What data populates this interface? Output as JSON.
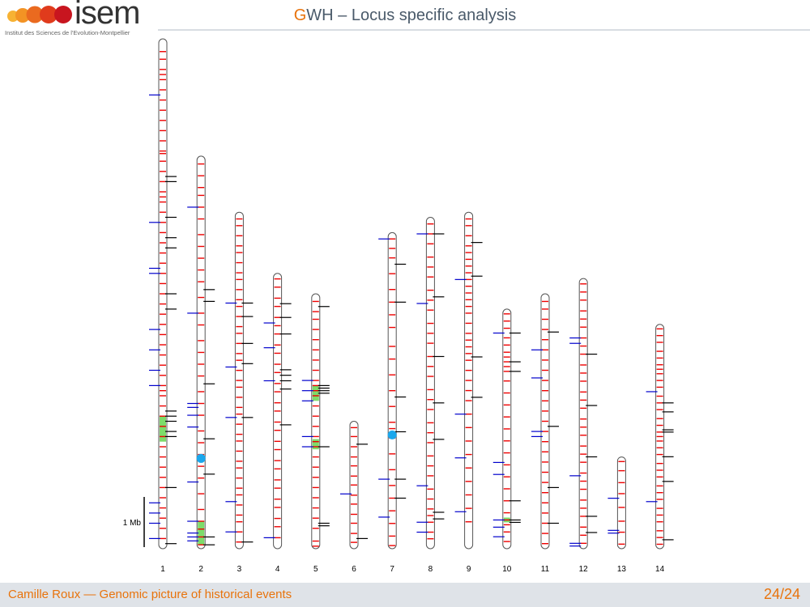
{
  "header": {
    "logo_text": "isem",
    "logo_tagline": "Institut des Sciences de l'Evolution-Montpellier",
    "title_accent": "G",
    "title_rest": "WH – Locus specific analysis"
  },
  "footer": {
    "author": "Camille Roux — Genomic picture of historical events",
    "page": "24/24"
  },
  "colors": {
    "segment_mark": "#ee0000",
    "blue_mark": "#0000cc",
    "black_mark": "#000000",
    "green_region": "#7ddc6a",
    "centromere": "#1aa7ec",
    "outline": "#555555"
  },
  "diagram": {
    "scale_label": "1 Mb",
    "chromosomes": [
      {
        "label": "1",
        "length": 1.0,
        "red": [
          0.025,
          0.04,
          0.06,
          0.07,
          0.08,
          0.1,
          0.12,
          0.14,
          0.16,
          0.18,
          0.2,
          0.22,
          0.225,
          0.24,
          0.26,
          0.28,
          0.3,
          0.31,
          0.32,
          0.34,
          0.36,
          0.38,
          0.4,
          0.42,
          0.44,
          0.46,
          0.48,
          0.5,
          0.52,
          0.54,
          0.56,
          0.58,
          0.6,
          0.62,
          0.64,
          0.66,
          0.68,
          0.69,
          0.7,
          0.72,
          0.74,
          0.76,
          0.78,
          0.8,
          0.82,
          0.84,
          0.86,
          0.88,
          0.9,
          0.92,
          0.94,
          0.96,
          0.98
        ],
        "blue": [
          0.11,
          0.36,
          0.45,
          0.46,
          0.57,
          0.61,
          0.65,
          0.68,
          0.91,
          0.93,
          0.95,
          0.98
        ],
        "black": [
          0.27,
          0.28,
          0.35,
          0.39,
          0.41,
          0.5,
          0.53,
          0.73,
          0.74,
          0.75,
          0.77,
          0.78,
          0.88,
          0.99
        ],
        "green": [
          [
            0.74,
            0.79
          ]
        ],
        "cent": null
      },
      {
        "label": "2",
        "length": 0.77,
        "red": [
          0.02,
          0.05,
          0.08,
          0.1,
          0.13,
          0.16,
          0.2,
          0.23,
          0.26,
          0.29,
          0.32,
          0.36,
          0.4,
          0.43,
          0.47,
          0.5,
          0.53,
          0.56,
          0.6,
          0.63,
          0.66,
          0.7,
          0.73,
          0.76,
          0.79,
          0.82,
          0.86,
          0.9,
          0.93,
          0.95,
          0.97,
          0.99
        ],
        "blue": [
          0.13,
          0.4,
          0.63,
          0.64,
          0.66,
          0.69,
          0.83,
          0.93,
          0.96,
          0.97,
          0.98
        ],
        "black": [
          0.34,
          0.37,
          0.58,
          0.72,
          0.81,
          0.97,
          0.99
        ],
        "green": [
          [
            0.93,
            0.99
          ]
        ],
        "cent": 0.77
      },
      {
        "label": "3",
        "length": 0.66,
        "red": [
          0.02,
          0.04,
          0.07,
          0.1,
          0.12,
          0.15,
          0.18,
          0.2,
          0.23,
          0.26,
          0.28,
          0.31,
          0.34,
          0.36,
          0.39,
          0.42,
          0.44,
          0.47,
          0.5,
          0.52,
          0.55,
          0.58,
          0.6,
          0.63,
          0.66,
          0.68,
          0.71,
          0.74,
          0.76,
          0.79,
          0.82,
          0.84,
          0.87,
          0.9,
          0.92,
          0.95,
          0.98
        ],
        "blue": [
          0.27,
          0.46,
          0.61,
          0.86,
          0.95
        ],
        "black": [
          0.27,
          0.31,
          0.39,
          0.45,
          0.61,
          0.98
        ],
        "green": [],
        "cent": null
      },
      {
        "label": "4",
        "length": 0.54,
        "red": [
          0.02,
          0.05,
          0.09,
          0.12,
          0.16,
          0.19,
          0.22,
          0.26,
          0.29,
          0.33,
          0.36,
          0.4,
          0.43,
          0.47,
          0.5,
          0.54,
          0.57,
          0.61,
          0.64,
          0.68,
          0.71,
          0.75,
          0.78,
          0.82,
          0.85,
          0.89,
          0.92,
          0.96
        ],
        "blue": [
          0.18,
          0.27,
          0.39,
          0.96
        ],
        "black": [
          0.11,
          0.16,
          0.22,
          0.35,
          0.37,
          0.39,
          0.42,
          0.55
        ],
        "green": [],
        "cent": null
      },
      {
        "label": "5",
        "length": 0.5,
        "red": [
          0.03,
          0.07,
          0.1,
          0.14,
          0.18,
          0.22,
          0.26,
          0.3,
          0.34,
          0.36,
          0.38,
          0.4,
          0.44,
          0.48,
          0.52,
          0.56,
          0.58,
          0.6,
          0.64,
          0.68,
          0.72,
          0.76,
          0.8,
          0.84,
          0.88,
          0.92,
          0.97,
          0.99
        ],
        "blue": [
          0.34,
          0.38,
          0.42,
          0.56,
          0.6
        ],
        "black": [
          0.05,
          0.36,
          0.37,
          0.38,
          0.39,
          0.6,
          0.9,
          0.91
        ],
        "green": [
          [
            0.36,
            0.42
          ],
          [
            0.57,
            0.61
          ]
        ],
        "cent": null
      },
      {
        "label": "6",
        "length": 0.25,
        "red": [
          0.05,
          0.12,
          0.2,
          0.28,
          0.35,
          0.43,
          0.5,
          0.58,
          0.65,
          0.73,
          0.8,
          0.88,
          0.95
        ],
        "blue": [
          0.57
        ],
        "black": [
          0.18,
          0.92
        ],
        "green": [],
        "cent": null
      },
      {
        "label": "7",
        "length": 0.62,
        "red": [
          0.02,
          0.05,
          0.08,
          0.13,
          0.18,
          0.22,
          0.26,
          0.3,
          0.36,
          0.4,
          0.45,
          0.5,
          0.55,
          0.6,
          0.62,
          0.65,
          0.7,
          0.75,
          0.8,
          0.84,
          0.88,
          0.92,
          0.96,
          0.99
        ],
        "blue": [
          0.02,
          0.78,
          0.9
        ],
        "black": [
          0.1,
          0.22,
          0.52,
          0.63,
          0.78,
          0.84
        ],
        "green": [],
        "cent": 0.64
      },
      {
        "label": "8",
        "length": 0.65,
        "red": [
          0.02,
          0.05,
          0.08,
          0.12,
          0.15,
          0.18,
          0.22,
          0.25,
          0.28,
          0.32,
          0.35,
          0.38,
          0.42,
          0.45,
          0.48,
          0.52,
          0.55,
          0.58,
          0.62,
          0.65,
          0.68,
          0.72,
          0.75,
          0.78,
          0.82,
          0.85,
          0.88,
          0.9,
          0.92,
          0.95,
          0.97
        ],
        "blue": [
          0.05,
          0.26,
          0.81,
          0.92,
          0.95
        ],
        "black": [
          0.05,
          0.24,
          0.42,
          0.56,
          0.67,
          0.89,
          0.91
        ],
        "green": [],
        "cent": null
      },
      {
        "label": "9",
        "length": 0.66,
        "red": [
          0.02,
          0.04,
          0.07,
          0.1,
          0.12,
          0.14,
          0.16,
          0.18,
          0.2,
          0.22,
          0.24,
          0.26,
          0.28,
          0.3,
          0.33,
          0.36,
          0.38,
          0.4,
          0.42,
          0.44,
          0.47,
          0.5,
          0.53,
          0.56,
          0.6,
          0.64,
          0.68,
          0.72,
          0.76,
          0.8,
          0.84,
          0.88,
          0.92
        ],
        "blue": [
          0.2,
          0.6,
          0.73,
          0.89
        ],
        "black": [
          0.09,
          0.19,
          0.43,
          0.55
        ],
        "green": [],
        "cent": null
      },
      {
        "label": "10",
        "length": 0.47,
        "red": [
          0.02,
          0.05,
          0.08,
          0.12,
          0.15,
          0.18,
          0.2,
          0.22,
          0.24,
          0.26,
          0.3,
          0.35,
          0.4,
          0.45,
          0.5,
          0.55,
          0.6,
          0.65,
          0.7,
          0.75,
          0.8,
          0.85,
          0.88,
          0.9,
          0.93,
          0.97
        ],
        "blue": [
          0.1,
          0.64,
          0.69,
          0.88,
          0.91,
          0.95
        ],
        "black": [
          0.1,
          0.22,
          0.26,
          0.8,
          0.88,
          0.89
        ],
        "green": [
          [
            0.87,
            0.89
          ]
        ],
        "cent": null
      },
      {
        "label": "11",
        "length": 0.5,
        "red": [
          0.03,
          0.06,
          0.1,
          0.14,
          0.18,
          0.22,
          0.26,
          0.3,
          0.34,
          0.38,
          0.42,
          0.46,
          0.5,
          0.54,
          0.58,
          0.62,
          0.66,
          0.7,
          0.74,
          0.78,
          0.82,
          0.86,
          0.9,
          0.94,
          0.98
        ],
        "blue": [
          0.22,
          0.33,
          0.54,
          0.56
        ],
        "black": [
          0.15,
          0.52,
          0.76,
          0.9
        ],
        "green": [],
        "cent": null
      },
      {
        "label": "12",
        "length": 0.53,
        "red": [
          0.02,
          0.05,
          0.08,
          0.12,
          0.15,
          0.18,
          0.22,
          0.25,
          0.28,
          0.32,
          0.35,
          0.38,
          0.42,
          0.45,
          0.48,
          0.52,
          0.55,
          0.58,
          0.62,
          0.65,
          0.68,
          0.72,
          0.75,
          0.78,
          0.82,
          0.85,
          0.88,
          0.92,
          0.95,
          0.98
        ],
        "blue": [
          0.22,
          0.24,
          0.73,
          0.98,
          0.99
        ],
        "black": [
          0.28,
          0.47,
          0.66,
          0.88,
          0.94
        ],
        "green": [],
        "cent": null
      },
      {
        "label": "13",
        "length": 0.18,
        "red": [
          0.05,
          0.15,
          0.28,
          0.4,
          0.55,
          0.7,
          0.82,
          0.95
        ],
        "blue": [
          0.45,
          0.8,
          0.83
        ],
        "black": [],
        "green": [],
        "cent": null
      },
      {
        "label": "14",
        "length": 0.44,
        "red": [
          0.02,
          0.05,
          0.08,
          0.12,
          0.15,
          0.18,
          0.2,
          0.22,
          0.25,
          0.28,
          0.32,
          0.35,
          0.38,
          0.42,
          0.45,
          0.48,
          0.5,
          0.52,
          0.55,
          0.58,
          0.62,
          0.65,
          0.68,
          0.72,
          0.75,
          0.78,
          0.82,
          0.85,
          0.88,
          0.92,
          0.95,
          0.98
        ],
        "blue": [
          0.3,
          0.79
        ],
        "black": [
          0.35,
          0.39,
          0.47,
          0.48,
          0.59,
          0.7,
          0.96
        ],
        "green": [],
        "cent": null
      }
    ]
  }
}
